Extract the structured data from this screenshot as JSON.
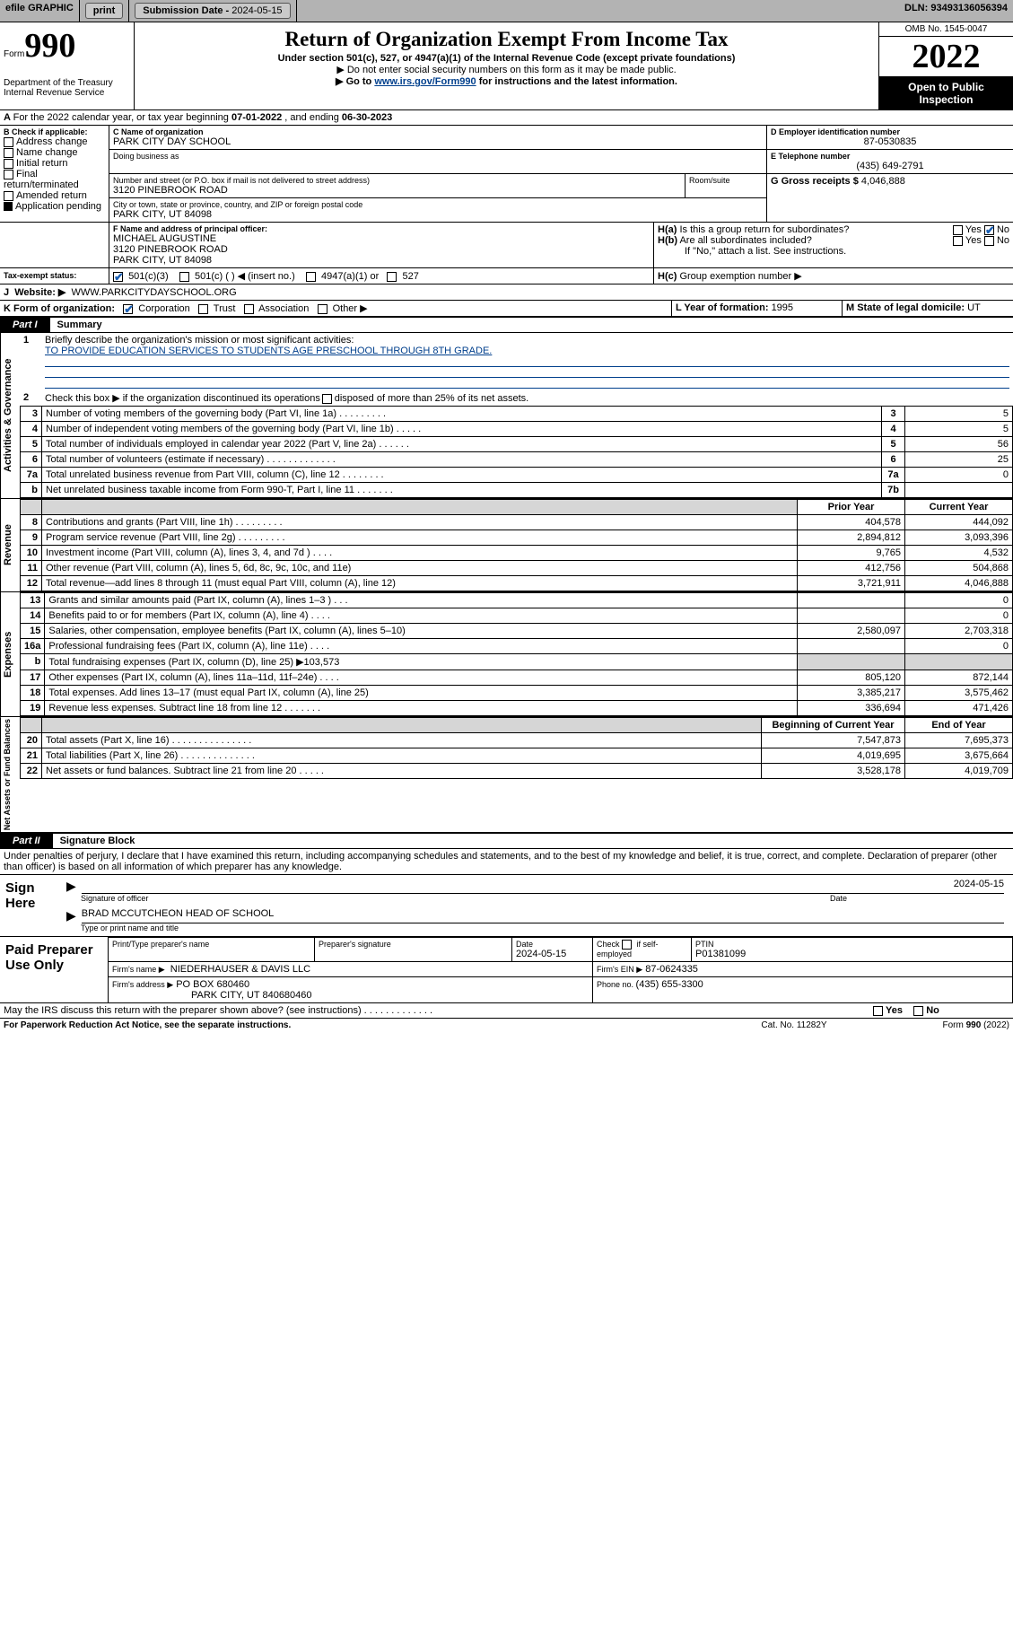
{
  "topbar": {
    "efile": "efile GRAPHIC",
    "print": "print",
    "submission_label": "Submission Date - ",
    "submission_date": "2024-05-15",
    "dln_label": "DLN: ",
    "dln": "93493136056394"
  },
  "header": {
    "form_word": "Form",
    "form_num": "990",
    "dept": "Department of the Treasury",
    "irs": "Internal Revenue Service",
    "title": "Return of Organization Exempt From Income Tax",
    "subtitle": "Under section 501(c), 527, or 4947(a)(1) of the Internal Revenue Code (except private foundations)",
    "note1": "▶ Do not enter social security numbers on this form as it may be made public.",
    "note2_pre": "▶ Go to ",
    "note2_link": "www.irs.gov/Form990",
    "note2_post": " for instructions and the latest information.",
    "omb": "OMB No. 1545-0047",
    "year": "2022",
    "open": "Open to Public Inspection"
  },
  "lineA": {
    "pre": "For the 2022 calendar year, or tax year beginning ",
    "begin": "07-01-2022",
    "mid": " , and ending ",
    "end": "06-30-2023"
  },
  "boxB": {
    "label": "B Check if applicable:",
    "items": [
      "Address change",
      "Name change",
      "Initial return",
      "Final return/terminated",
      "Amended return",
      "Application pending"
    ]
  },
  "boxC": {
    "label": "C Name of organization",
    "name": "PARK CITY DAY SCHOOL",
    "dba_label": "Doing business as",
    "street_label": "Number and street (or P.O. box if mail is not delivered to street address)",
    "suite_label": "Room/suite",
    "street": "3120 PINEBROOK ROAD",
    "city_label": "City or town, state or province, country, and ZIP or foreign postal code",
    "city": "PARK CITY, UT  84098"
  },
  "boxD": {
    "label": "D Employer identification number",
    "value": "87-0530835"
  },
  "boxE": {
    "label": "E Telephone number",
    "value": "(435) 649-2791"
  },
  "boxG": {
    "label": "G Gross receipts $ ",
    "value": "4,046,888"
  },
  "boxF": {
    "label": "F Name and address of principal officer:",
    "name": "MICHAEL AUGUSTINE",
    "street": "3120 PINEBROOK ROAD",
    "city": "PARK CITY, UT  84098"
  },
  "boxH": {
    "ha": "Is this a group return for subordinates?",
    "hb": "Are all subordinates included?",
    "hb_note": "If \"No,\" attach a list. See instructions.",
    "hc": "Group exemption number ▶",
    "yes": "Yes",
    "no": "No"
  },
  "boxI": {
    "label": "Tax-exempt status:",
    "opts": [
      "501(c)(3)",
      "501(c) (   ) ◀ (insert no.)",
      "4947(a)(1) or",
      "527"
    ]
  },
  "boxJ": {
    "label": "Website: ▶",
    "value": "WWW.PARKCITYDAYSCHOOL.ORG"
  },
  "boxK": {
    "label": "K Form of organization:",
    "opts": [
      "Corporation",
      "Trust",
      "Association",
      "Other ▶"
    ]
  },
  "boxL": {
    "label": "L Year of formation: ",
    "value": "1995"
  },
  "boxM": {
    "label": "M State of legal domicile: ",
    "value": "UT"
  },
  "part1": {
    "num": "Part I",
    "title": "Summary",
    "vlab_ag": "Activities & Governance",
    "vlab_rev": "Revenue",
    "vlab_exp": "Expenses",
    "vlab_na": "Net Assets or Fund Balances",
    "l1": "Briefly describe the organization's mission or most significant activities:",
    "l1v": "TO PROVIDE EDUCATION SERVICES TO STUDENTS AGE PRESCHOOL THROUGH 8TH GRADE.",
    "l2": "Check this box ▶        if the organization discontinued its operations or disposed of more than 25% of its net assets.",
    "rows_ag": [
      {
        "n": "3",
        "t": "Number of voting members of the governing body (Part VI, line 1a)   .    .    .    .    .    .    .    .    .",
        "b": "3",
        "v": "5"
      },
      {
        "n": "4",
        "t": "Number of independent voting members of the governing body (Part VI, line 1b)   .    .    .    .    .",
        "b": "4",
        "v": "5"
      },
      {
        "n": "5",
        "t": "Total number of individuals employed in calendar year 2022 (Part V, line 2a)   .    .    .    .    .    .",
        "b": "5",
        "v": "56"
      },
      {
        "n": "6",
        "t": "Total number of volunteers (estimate if necessary)   .    .    .    .    .    .    .    .    .    .    .    .    .",
        "b": "6",
        "v": "25"
      },
      {
        "n": "7a",
        "t": "Total unrelated business revenue from Part VIII, column (C), line 12   .    .    .    .    .    .    .    .",
        "b": "7a",
        "v": "0"
      },
      {
        "n": "b",
        "t": "Net unrelated business taxable income from Form 990-T, Part I, line 11   .    .    .    .    .    .    .",
        "b": "7b",
        "v": ""
      }
    ],
    "col_prior": "Prior Year",
    "col_curr": "Current Year",
    "rows_rev": [
      {
        "n": "8",
        "t": "Contributions and grants (Part VIII, line 1h)   .    .    .    .    .    .    .    .    .",
        "p": "404,578",
        "c": "444,092"
      },
      {
        "n": "9",
        "t": "Program service revenue (Part VIII, line 2g)   .    .    .    .    .    .    .    .    .",
        "p": "2,894,812",
        "c": "3,093,396"
      },
      {
        "n": "10",
        "t": "Investment income (Part VIII, column (A), lines 3, 4, and 7d )   .    .    .    .",
        "p": "9,765",
        "c": "4,532"
      },
      {
        "n": "11",
        "t": "Other revenue (Part VIII, column (A), lines 5, 6d, 8c, 9c, 10c, and 11e)",
        "p": "412,756",
        "c": "504,868"
      },
      {
        "n": "12",
        "t": "Total revenue—add lines 8 through 11 (must equal Part VIII, column (A), line 12)",
        "p": "3,721,911",
        "c": "4,046,888"
      }
    ],
    "rows_exp": [
      {
        "n": "13",
        "t": "Grants and similar amounts paid (Part IX, column (A), lines 1–3 )   .    .    .",
        "p": "",
        "c": "0"
      },
      {
        "n": "14",
        "t": "Benefits paid to or for members (Part IX, column (A), line 4)   .    .    .    .",
        "p": "",
        "c": "0"
      },
      {
        "n": "15",
        "t": "Salaries, other compensation, employee benefits (Part IX, column (A), lines 5–10)",
        "p": "2,580,097",
        "c": "2,703,318"
      },
      {
        "n": "16a",
        "t": "Professional fundraising fees (Part IX, column (A), line 11e)   .    .    .    .",
        "p": "",
        "c": "0"
      },
      {
        "n": "b",
        "t": "Total fundraising expenses (Part IX, column (D), line 25) ▶103,573",
        "p": "—shade—",
        "c": "—shade—"
      },
      {
        "n": "17",
        "t": "Other expenses (Part IX, column (A), lines 11a–11d, 11f–24e)   .    .    .    .",
        "p": "805,120",
        "c": "872,144"
      },
      {
        "n": "18",
        "t": "Total expenses. Add lines 13–17 (must equal Part IX, column (A), line 25)",
        "p": "3,385,217",
        "c": "3,575,462"
      },
      {
        "n": "19",
        "t": "Revenue less expenses. Subtract line 18 from line 12   .    .    .    .    .    .    .",
        "p": "336,694",
        "c": "471,426"
      }
    ],
    "col_boy": "Beginning of Current Year",
    "col_eoy": "End of Year",
    "rows_na": [
      {
        "n": "20",
        "t": "Total assets (Part X, line 16)   .    .    .    .    .    .    .    .    .    .    .    .    .    .    .",
        "p": "7,547,873",
        "c": "7,695,373"
      },
      {
        "n": "21",
        "t": "Total liabilities (Part X, line 26)   .    .    .    .    .    .    .    .    .    .    .    .    .    .",
        "p": "4,019,695",
        "c": "3,675,664"
      },
      {
        "n": "22",
        "t": "Net assets or fund balances. Subtract line 21 from line 20   .    .    .    .    .",
        "p": "3,528,178",
        "c": "4,019,709"
      }
    ]
  },
  "part2": {
    "num": "Part II",
    "title": "Signature Block",
    "decl": "Under penalties of perjury, I declare that I have examined this return, including accompanying schedules and statements, and to the best of my knowledge and belief, it is true, correct, and complete. Declaration of preparer (other than officer) is based on all information of which preparer has any knowledge.",
    "sign_here": "Sign Here",
    "sig_officer": "Signature of officer",
    "sig_date": "2024-05-15",
    "date_lbl": "Date",
    "officer_name": "BRAD MCCUTCHEON  HEAD OF SCHOOL",
    "type_lbl": "Type or print name and title",
    "paid": "Paid Preparer Use Only",
    "prep_name_lbl": "Print/Type preparer's name",
    "prep_sig_lbl": "Preparer's signature",
    "prep_date": "2024-05-15",
    "check_self": "Check        if self-employed",
    "ptin_lbl": "PTIN",
    "ptin": "P01381099",
    "firm_name_lbl": "Firm's name    ▶",
    "firm_name": "NIEDERHAUSER & DAVIS LLC",
    "firm_ein_lbl": "Firm's EIN ▶",
    "firm_ein": "87-0624335",
    "firm_addr_lbl": "Firm's address ▶",
    "firm_addr1": "PO BOX 680460",
    "firm_addr2": "PARK CITY, UT  840680460",
    "firm_phone_lbl": "Phone no. ",
    "firm_phone": "(435) 655-3300",
    "discuss": "May the IRS discuss this return with the preparer shown above? (see instructions)   .    .    .    .    .    .    .    .    .    .    .    .    ."
  },
  "footer": {
    "pra": "For Paperwork Reduction Act Notice, see the separate instructions.",
    "cat": "Cat. No. 11282Y",
    "form": "Form 990 (2022)"
  }
}
